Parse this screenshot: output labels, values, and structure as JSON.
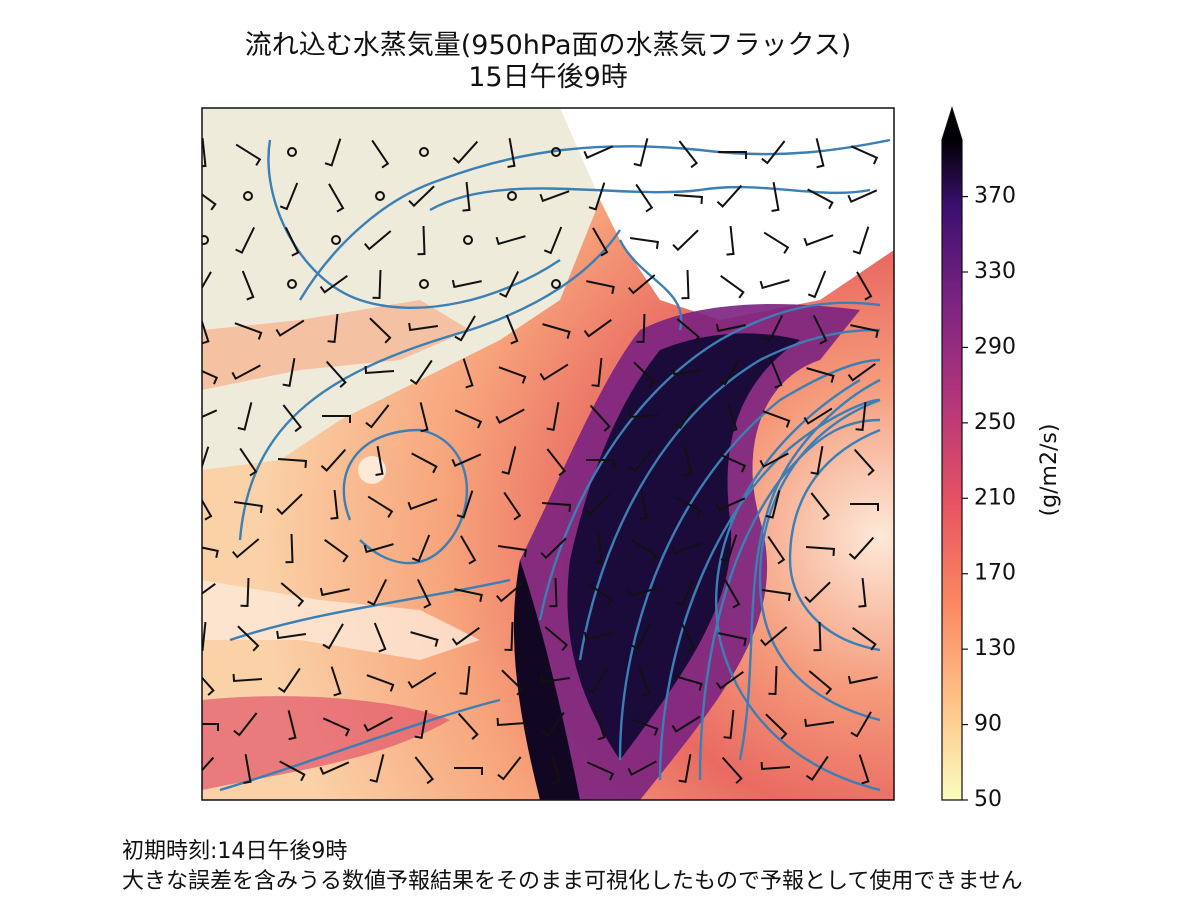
{
  "title": "流れ込む水蒸気量(950hPa面の水蒸気フラックス)",
  "subtitle": "15日午後9時",
  "colorbar": {
    "label": "(g/m2/s)",
    "range": [
      50,
      400
    ],
    "ticks": [
      50,
      90,
      130,
      170,
      210,
      250,
      290,
      330,
      370
    ],
    "extend": "max"
  },
  "footer": {
    "init_time": "初期時刻:14日午後9時",
    "disclaimer": "大きな誤差を含みうる数値予報結果をそのまま可視化したもので予報として使用できません"
  }
}
